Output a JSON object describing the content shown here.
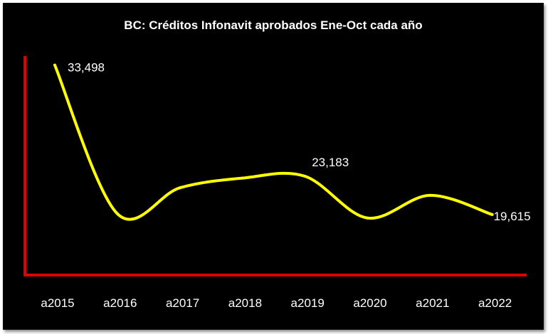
{
  "chart_data": {
    "type": "line",
    "title": "BC: Créditos Infonavit aprobados Ene-Oct cada año",
    "xlabel": "",
    "ylabel": "",
    "categories": [
      "a2015",
      "a2016",
      "a2017",
      "a2018",
      "a2019",
      "a2020",
      "a2021",
      "a2022"
    ],
    "series": [
      {
        "values": [
          33498,
          19700,
          22100,
          23000,
          23183,
          19300,
          21400,
          19615
        ]
      }
    ],
    "data_labels": [
      {
        "index": 0,
        "text": "33,498"
      },
      {
        "index": 4,
        "text": "23,183"
      },
      {
        "index": 7,
        "text": "19,615"
      }
    ],
    "ylim": [
      14000,
      34000
    ],
    "smooth": true,
    "grid": false,
    "legend": "none",
    "colors": {
      "background": "#000000",
      "line": "#FFFF00",
      "axis": "#E00000",
      "text": "#FFFFFF"
    }
  }
}
